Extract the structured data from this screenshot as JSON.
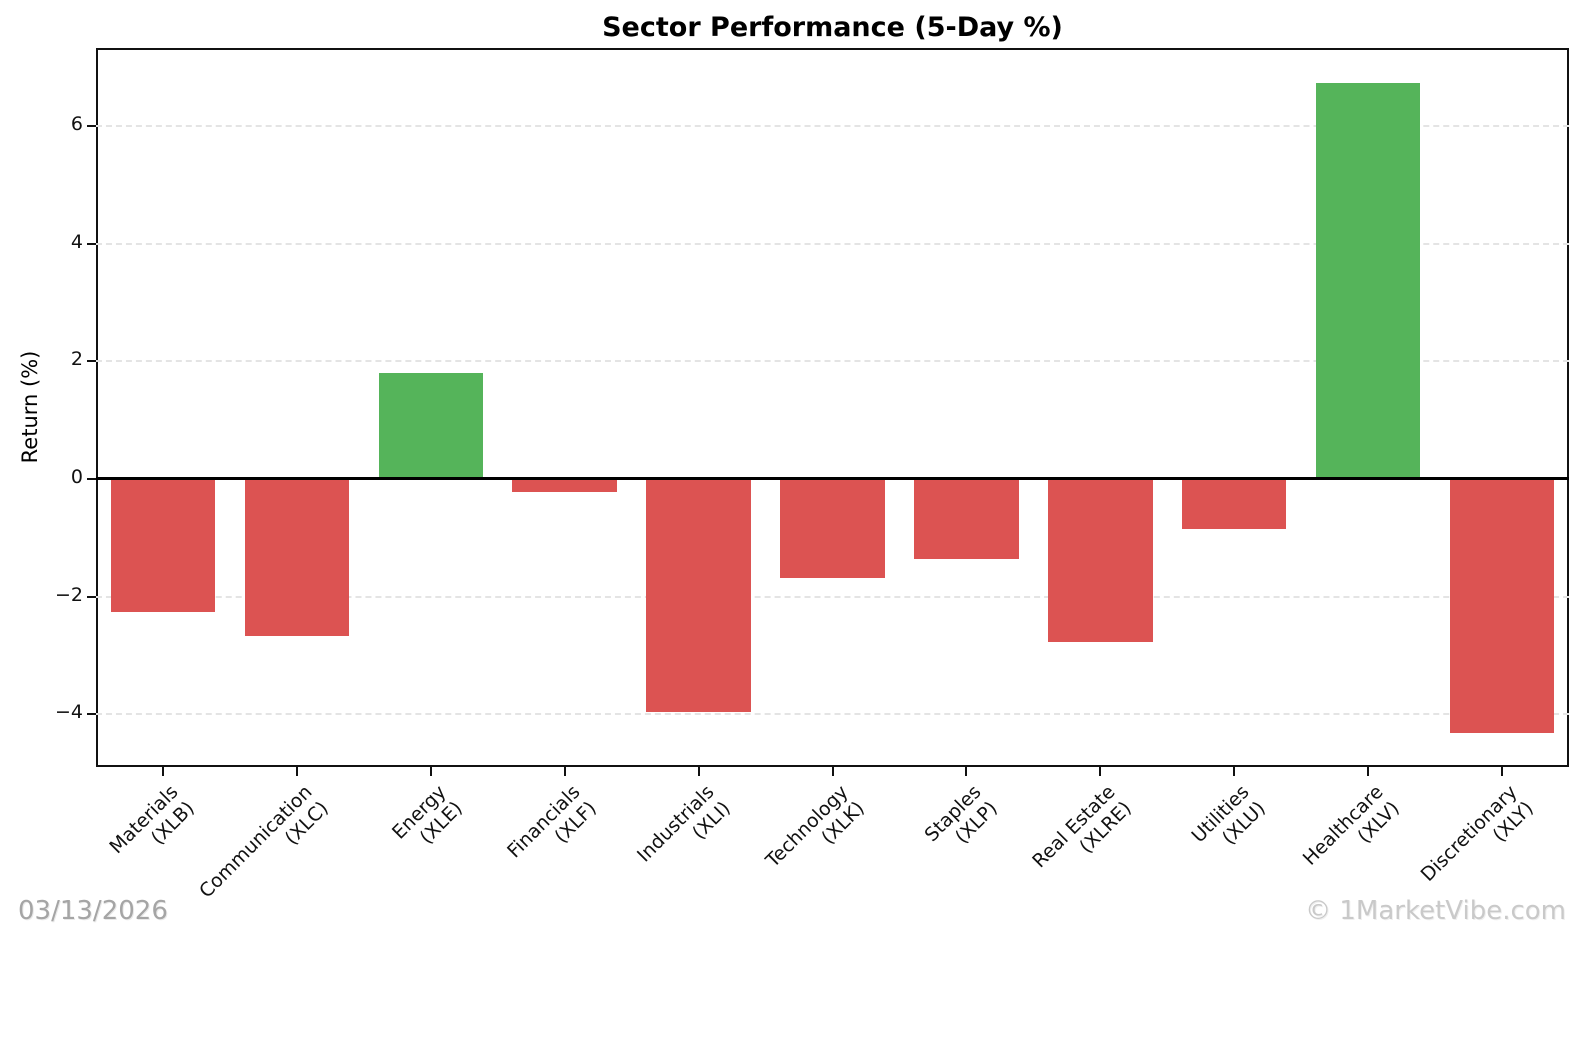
{
  "header": {
    "title": "Sector Performance (5-Day %)"
  },
  "footer": {
    "date": "03/13/2026",
    "watermark": "© 1MarketVibe.com"
  },
  "colors": {
    "positive": "#55b45a",
    "negative": "#dc5352",
    "grid": "#e4e4e4",
    "zero_line": "#000000",
    "spine": "#111111",
    "date_text": "#a5a5a5",
    "watermark_text": "#c9c9c9"
  },
  "chart_data": {
    "type": "bar",
    "title": "Sector Performance (5-Day %)",
    "xlabel": "",
    "ylabel": "Return (%)",
    "ylim": [
      -4.9,
      7.33
    ],
    "yticks": [
      -4,
      -2,
      0,
      2,
      4,
      6
    ],
    "ytick_labels": [
      "−4",
      "−2",
      "0",
      "2",
      "4",
      "6"
    ],
    "grid": "horizontal-dashed",
    "zero_line": "solid-black",
    "legend": "none",
    "bar_color_rule": "green if positive, red if negative",
    "series": [
      {
        "sector": "Materials",
        "ticker": "(XLB)",
        "value": -2.27
      },
      {
        "sector": "Communication",
        "ticker": "(XLC)",
        "value": -2.68
      },
      {
        "sector": "Energy",
        "ticker": "(XLE)",
        "value": 1.81
      },
      {
        "sector": "Financials",
        "ticker": "(XLF)",
        "value": -0.23
      },
      {
        "sector": "Industrials",
        "ticker": "(XLI)",
        "value": -3.97
      },
      {
        "sector": "Technology",
        "ticker": "(XLK)",
        "value": -1.68
      },
      {
        "sector": "Staples",
        "ticker": "(XLP)",
        "value": -1.37
      },
      {
        "sector": "Real Estate",
        "ticker": "(XLRE)",
        "value": -2.78
      },
      {
        "sector": "Utilities",
        "ticker": "(XLU)",
        "value": -0.86
      },
      {
        "sector": "Healthcare",
        "ticker": "(XLV)",
        "value": 6.73
      },
      {
        "sector": "Discretionary",
        "ticker": "(XLY)",
        "value": -4.33
      }
    ]
  }
}
